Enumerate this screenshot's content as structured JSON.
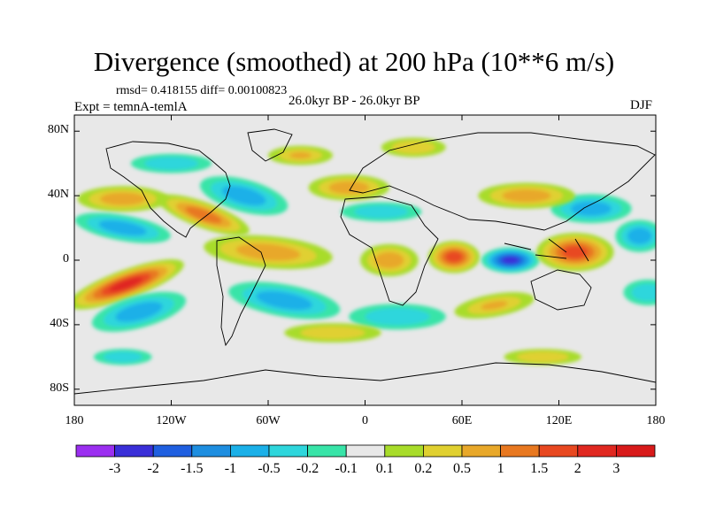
{
  "title": "Divergence (smoothed) at 200 hPa (10**6 m/s)",
  "stats_text": "rmsd= 0.418155 diff= 0.00100823",
  "experiment_text": "Expt = temnA-temlA",
  "period_text": "26.0kyr BP - 26.0kyr BP",
  "season_text": "DJF",
  "chart_data": {
    "type": "heatmap",
    "title": "Divergence (smoothed) at 200 hPa (10**6 m/s)",
    "y_ticks": [
      {
        "lat": 80,
        "label": "80N"
      },
      {
        "lat": 40,
        "label": "40N"
      },
      {
        "lat": 0,
        "label": "0"
      },
      {
        "lat": -40,
        "label": "40S"
      },
      {
        "lat": -80,
        "label": "80S"
      }
    ],
    "x_ticks": [
      {
        "lon": -180,
        "label": "180"
      },
      {
        "lon": -120,
        "label": "120W"
      },
      {
        "lon": -60,
        "label": "60W"
      },
      {
        "lon": 0,
        "label": "0"
      },
      {
        "lon": 60,
        "label": "60E"
      },
      {
        "lon": 120,
        "label": "120E"
      },
      {
        "lon": 180,
        "label": "180"
      }
    ],
    "xlim": [
      -180,
      180
    ],
    "ylim": [
      -90,
      90
    ],
    "colorbar": {
      "levels": [
        "-3",
        "-2",
        "-1.5",
        "-1",
        "-0.5",
        "-0.2",
        "-0.1",
        "0.1",
        "0.2",
        "0.5",
        "1",
        "1.5",
        "2",
        "3"
      ],
      "colors": [
        "#9b2ff0",
        "#3a2fd8",
        "#1f5fe0",
        "#1e8ee0",
        "#1bb0e8",
        "#2ed6dc",
        "#38e4a8",
        "#e8e8e8",
        "#a8dc2a",
        "#e0d030",
        "#e8a82a",
        "#e87820",
        "#e84820",
        "#e02820",
        "#d81a1a"
      ]
    },
    "features": [
      {
        "type": "positive",
        "lon": -148,
        "lat": -15,
        "w": 38,
        "h": 9,
        "v": 2.5,
        "rot": -20
      },
      {
        "type": "negative",
        "lon": -140,
        "lat": -32,
        "w": 30,
        "h": 10,
        "v": -0.8,
        "rot": -15
      },
      {
        "type": "positive",
        "lon": -150,
        "lat": 38,
        "w": 28,
        "h": 8,
        "v": 0.9,
        "rot": 0
      },
      {
        "type": "negative",
        "lon": -150,
        "lat": 20,
        "w": 30,
        "h": 8,
        "v": -0.6,
        "rot": 10
      },
      {
        "type": "positive",
        "lon": -100,
        "lat": 28,
        "w": 30,
        "h": 8,
        "v": 1.2,
        "rot": 20
      },
      {
        "type": "negative",
        "lon": -75,
        "lat": 40,
        "w": 28,
        "h": 10,
        "v": -0.7,
        "rot": 15
      },
      {
        "type": "positive",
        "lon": -60,
        "lat": 5,
        "w": 40,
        "h": 10,
        "v": 0.6,
        "rot": 5
      },
      {
        "type": "negative",
        "lon": -50,
        "lat": -25,
        "w": 35,
        "h": 10,
        "v": -0.6,
        "rot": 10
      },
      {
        "type": "positive",
        "lon": 55,
        "lat": 2,
        "w": 16,
        "h": 10,
        "v": 1.6,
        "rot": 0
      },
      {
        "type": "positive",
        "lon": 15,
        "lat": 0,
        "w": 18,
        "h": 10,
        "v": 0.9,
        "rot": 0
      },
      {
        "type": "negative",
        "lon": 90,
        "lat": 0,
        "w": 18,
        "h": 8,
        "v": -2.4,
        "rot": 0
      },
      {
        "type": "positive",
        "lon": 130,
        "lat": 5,
        "w": 24,
        "h": 12,
        "v": 1.9,
        "rot": 0
      },
      {
        "type": "negative",
        "lon": 140,
        "lat": 32,
        "w": 25,
        "h": 9,
        "v": -1.0,
        "rot": 0
      },
      {
        "type": "positive",
        "lon": 100,
        "lat": 40,
        "w": 30,
        "h": 8,
        "v": 0.7,
        "rot": 0
      },
      {
        "type": "positive",
        "lon": -10,
        "lat": 45,
        "w": 25,
        "h": 8,
        "v": 0.6,
        "rot": 0
      },
      {
        "type": "negative",
        "lon": 10,
        "lat": 30,
        "w": 25,
        "h": 6,
        "v": -0.5,
        "rot": 0
      },
      {
        "type": "positive",
        "lon": 80,
        "lat": -28,
        "w": 25,
        "h": 7,
        "v": 0.5,
        "rot": -10
      },
      {
        "type": "negative",
        "lon": 20,
        "lat": -35,
        "w": 30,
        "h": 8,
        "v": -0.4,
        "rot": 0
      },
      {
        "type": "positive",
        "lon": -20,
        "lat": -45,
        "w": 30,
        "h": 6,
        "v": 0.4,
        "rot": 0
      },
      {
        "type": "negative",
        "lon": -150,
        "lat": -60,
        "w": 18,
        "h": 5,
        "v": -0.5,
        "rot": 0
      },
      {
        "type": "positive",
        "lon": 110,
        "lat": -60,
        "w": 24,
        "h": 5,
        "v": 0.3,
        "rot": 0
      },
      {
        "type": "negative",
        "lon": -120,
        "lat": 60,
        "w": 25,
        "h": 6,
        "v": -0.4,
        "rot": 0
      },
      {
        "type": "positive",
        "lon": -40,
        "lat": 65,
        "w": 20,
        "h": 6,
        "v": 0.5,
        "rot": 0
      },
      {
        "type": "positive",
        "lon": 30,
        "lat": 70,
        "w": 20,
        "h": 6,
        "v": 0.4,
        "rot": 0
      },
      {
        "type": "negative",
        "lon": 170,
        "lat": 15,
        "w": 15,
        "h": 10,
        "v": -0.6,
        "rot": 0
      },
      {
        "type": "negative",
        "lon": 175,
        "lat": -20,
        "w": 15,
        "h": 8,
        "v": -0.5,
        "rot": 0
      }
    ]
  }
}
